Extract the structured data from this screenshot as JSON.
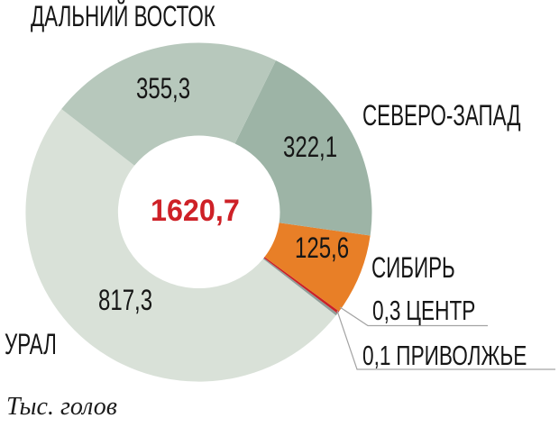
{
  "page": {
    "background": "#ffffff",
    "footnote": "Тыс. голов"
  },
  "chart_data": {
    "type": "pie",
    "subtype": "donut",
    "unit_label": "Тыс. голов",
    "total": 1620.7,
    "total_label": "1620,7",
    "total_color": "#ce2127",
    "legend_position": "around",
    "segments": [
      {
        "id": "dalniy-vostok",
        "label": "ДАЛЬНИЙ ВОСТОК",
        "value": 355.3,
        "value_label": "355,3",
        "color": "#b7c8bc"
      },
      {
        "id": "severo-zapad",
        "label": "СЕВЕРО-ЗАПАД",
        "value": 322.1,
        "value_label": "322,1",
        "color": "#9db4a6"
      },
      {
        "id": "sibir",
        "label": "СИБИРЬ",
        "value": 125.6,
        "value_label": "125,6",
        "color": "#e87f27"
      },
      {
        "id": "tsentr",
        "label": "ЦЕНТР",
        "value": 0.3,
        "value_label": "0,3",
        "color": "#cb2026"
      },
      {
        "id": "privolzhye",
        "label": "ПРИВОЛЖЬЕ",
        "value": 0.1,
        "value_label": "0,1",
        "color": "#8f9e99"
      },
      {
        "id": "ural",
        "label": "УРАЛ",
        "value": 817.3,
        "value_label": "817,3",
        "color": "#d9e1d8"
      }
    ]
  }
}
